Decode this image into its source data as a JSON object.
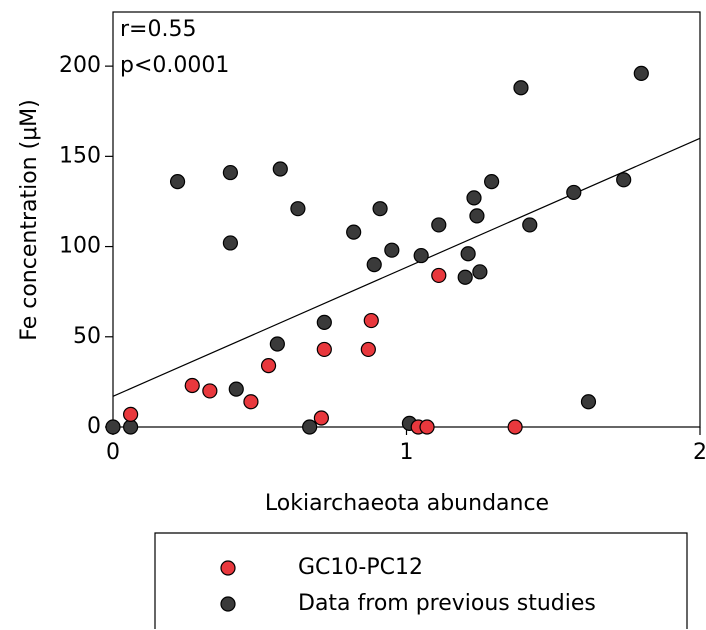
{
  "chart_data": {
    "type": "scatter",
    "xlabel": "Lokiarchaeota abundance",
    "ylabel": "Fe concentration (μM)",
    "annotations": [
      "r=0.55",
      "p<0.0001"
    ],
    "xlim": [
      0,
      2
    ],
    "xticks": [
      0,
      1,
      2
    ],
    "ylim": [
      0,
      230
    ],
    "yticks": [
      0,
      50,
      100,
      150,
      200
    ],
    "series": [
      {
        "name": "GC10-PC12",
        "color": "#e8383d",
        "x": [
          0.06,
          0.27,
          0.33,
          0.47,
          0.53,
          0.71,
          0.72,
          0.87,
          0.88,
          1.11,
          1.04,
          1.07,
          1.37
        ],
        "values": [
          7,
          23,
          20,
          14,
          34,
          5,
          43,
          43,
          59,
          84,
          0,
          0,
          0
        ]
      },
      {
        "name": "Data from previous studies",
        "color": "#3a3a3a",
        "x": [
          0,
          0.06,
          0.22,
          0.4,
          0.4,
          0.42,
          0.56,
          0.57,
          0.63,
          0.67,
          0.72,
          0.82,
          0.89,
          0.91,
          0.95,
          1.01,
          1.05,
          1.11,
          1.2,
          1.21,
          1.23,
          1.24,
          1.25,
          1.29,
          1.39,
          1.42,
          1.57,
          1.62,
          1.74,
          1.8
        ],
        "values": [
          0,
          0,
          136,
          141,
          102,
          21,
          46,
          143,
          121,
          0,
          58,
          108,
          90,
          121,
          98,
          2,
          95,
          112,
          83,
          96,
          127,
          117,
          86,
          136,
          188,
          112,
          130,
          14,
          137,
          196
        ]
      }
    ],
    "trendline": {
      "x": [
        0,
        2
      ],
      "y": [
        17,
        160
      ]
    }
  }
}
